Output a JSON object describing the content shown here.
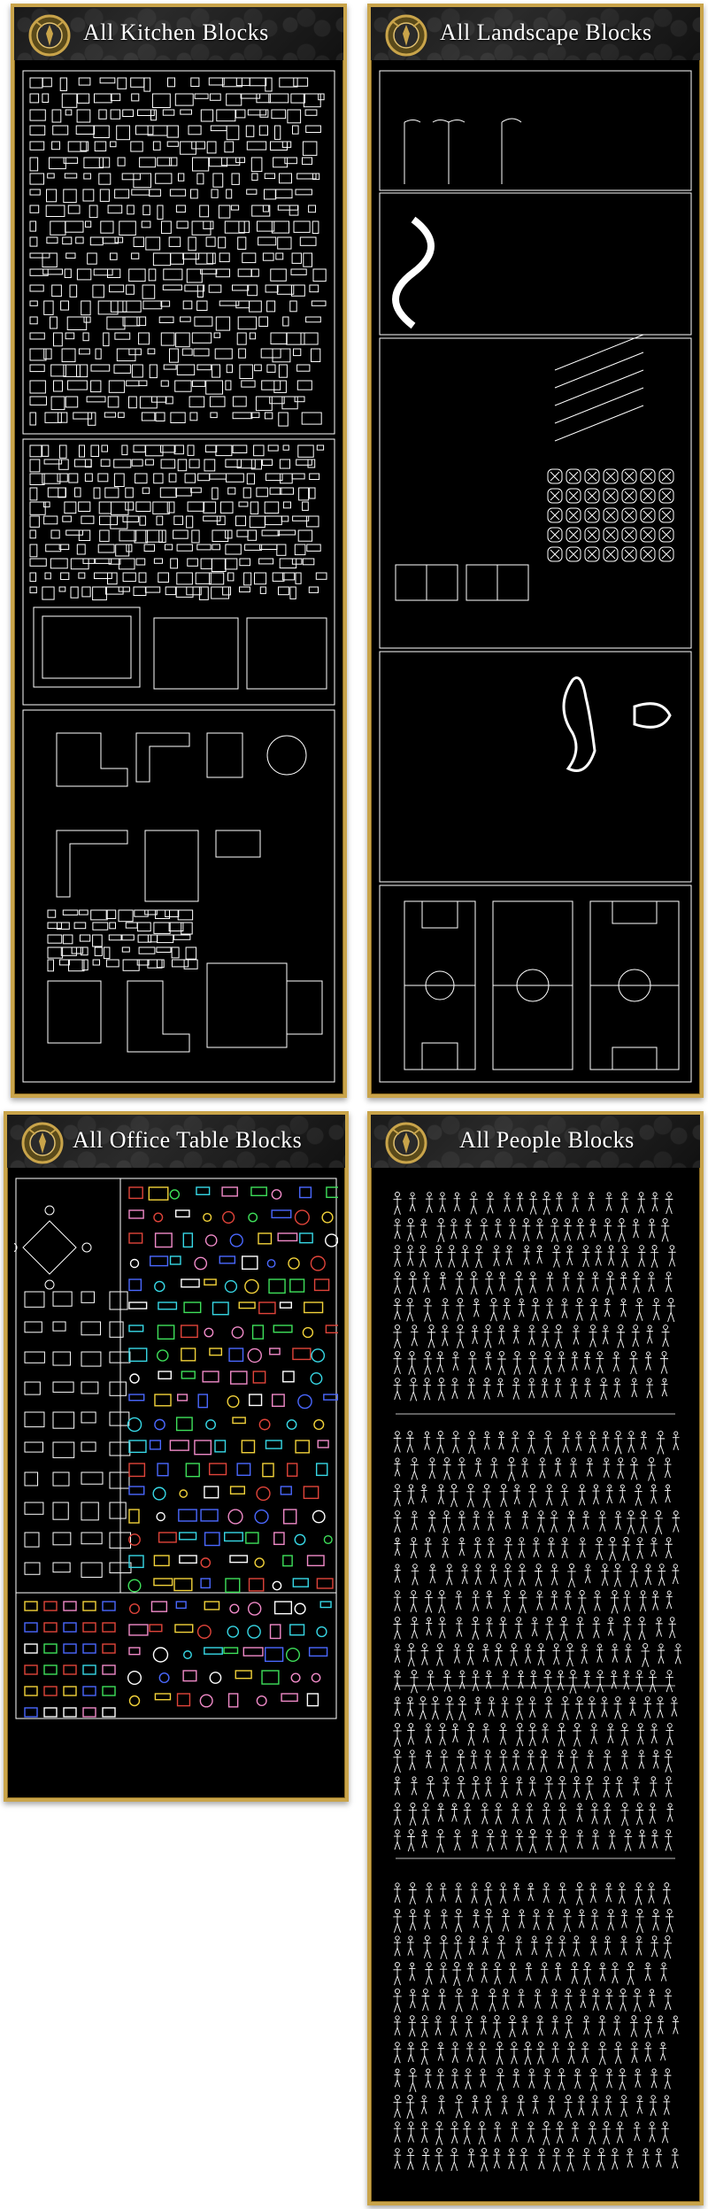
{
  "panels": {
    "kitchen": {
      "title": "All Kitchen Blocks"
    },
    "landscape": {
      "title": "All Landscape Blocks"
    },
    "office": {
      "title": "All Office Table Blocks"
    },
    "people": {
      "title": "All People Blocks"
    }
  },
  "colors": {
    "frame_gold": "#c9a44a",
    "background": "#000000",
    "line_white": "#ffffff",
    "cad_pink": "#f08ac8",
    "cad_yellow": "#f2d23a",
    "cad_cyan": "#37d8e6",
    "cad_red": "#e0443a",
    "cad_green": "#3ee05a",
    "cad_blue": "#4a68ff"
  },
  "icons": {
    "crest": "crest-emblem-icon"
  }
}
